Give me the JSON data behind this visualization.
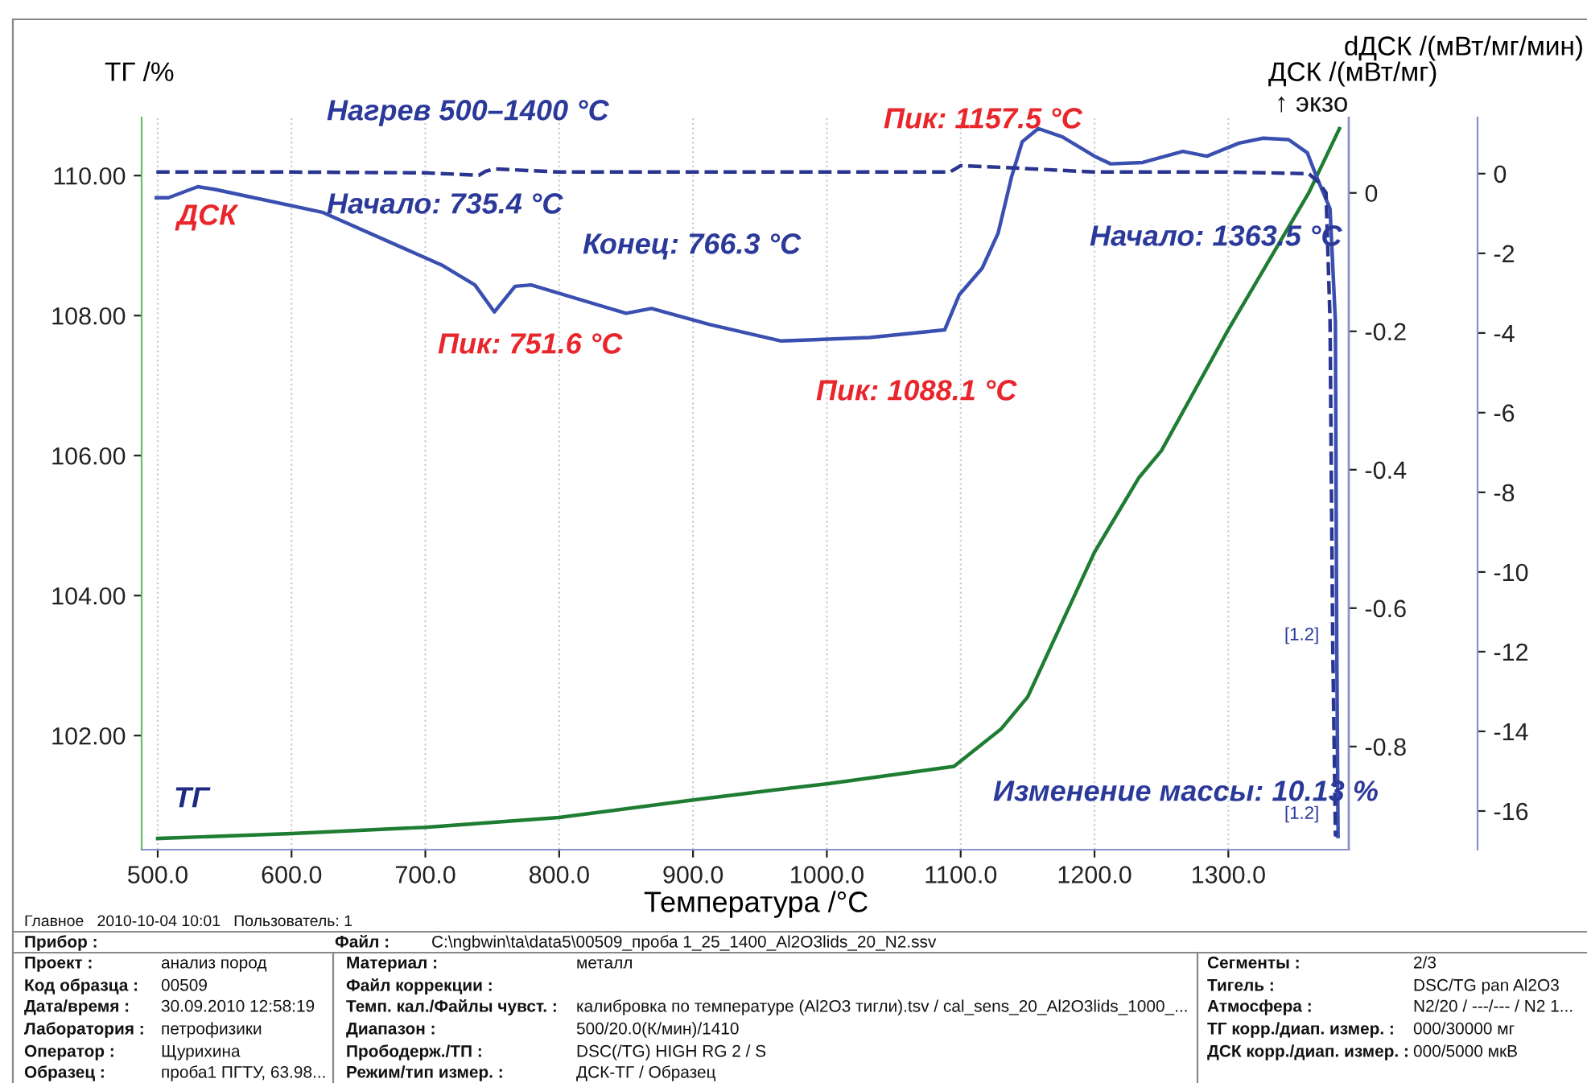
{
  "chart_data": {
    "type": "line",
    "xlabel": "Температура /°C",
    "ylabel": "ТГ /%",
    "y2label": "ДСК /(мВт/мг)",
    "y3label": "dДСК /(мВт/мг/мин)",
    "xlim": [
      488,
      1390
    ],
    "xticks": [
      {
        "value": 500,
        "label": "500.0"
      },
      {
        "value": 600,
        "label": "600.0"
      },
      {
        "value": 700,
        "label": "700.0"
      },
      {
        "value": 800,
        "label": "800.0"
      },
      {
        "value": 900,
        "label": "900.0"
      },
      {
        "value": 1000,
        "label": "1000.0"
      },
      {
        "value": 1100,
        "label": "1100.0"
      },
      {
        "value": 1200,
        "label": "1200.0"
      },
      {
        "value": 1300,
        "label": "1300.0"
      }
    ],
    "ylim": [
      100.37,
      110.83
    ],
    "yticks": [
      {
        "value": 102,
        "label": "102.00"
      },
      {
        "value": 104,
        "label": "104.00"
      },
      {
        "value": 106,
        "label": "106.00"
      },
      {
        "value": 108,
        "label": "108.00"
      },
      {
        "value": 110,
        "label": "110.00"
      }
    ],
    "y2lim": [
      -0.949,
      0.109
    ],
    "y2ticks": [
      -0.8,
      -0.6,
      -0.4,
      -0.2,
      0
    ],
    "y3lim": [
      -16.97,
      1.41
    ],
    "y3ticks": [
      -16,
      -14,
      -12,
      -10,
      -8,
      -6,
      -4,
      -2,
      0
    ],
    "grid": "x",
    "line_style": "solid",
    "series": [
      {
        "name": "ТГ",
        "axis": "y",
        "color": "#1e7d32",
        "x": [
          500,
          600,
          700,
          800,
          900,
          960,
          1000,
          1095,
          1130,
          1150,
          1200,
          1233,
          1250,
          1300,
          1360,
          1383
        ],
        "values": [
          100.53,
          100.6,
          100.69,
          100.83,
          101.08,
          101.22,
          101.31,
          101.56,
          102.09,
          102.55,
          104.62,
          105.68,
          106.07,
          107.8,
          109.75,
          110.67
        ]
      },
      {
        "name": "ДСК",
        "axis": "y2",
        "color": "#3a4fb0",
        "x": [
          499,
          508,
          530,
          543,
          623,
          713,
          737,
          751.6,
          767,
          779,
          850,
          869,
          912,
          966,
          1032,
          1088,
          1099,
          1116,
          1128,
          1138,
          1146,
          1158,
          1176,
          1200,
          1212,
          1236,
          1266,
          1284,
          1308,
          1326,
          1345,
          1359,
          1366,
          1376,
          1380,
          1381,
          1382
        ],
        "values": [
          -0.007,
          -0.007,
          0.009,
          0.005,
          -0.028,
          -0.105,
          -0.133,
          -0.172,
          -0.135,
          -0.133,
          -0.174,
          -0.167,
          -0.19,
          -0.214,
          -0.209,
          -0.198,
          -0.147,
          -0.109,
          -0.058,
          0.023,
          0.074,
          0.093,
          0.081,
          0.053,
          0.042,
          0.044,
          0.06,
          0.053,
          0.072,
          0.079,
          0.077,
          0.058,
          0.023,
          -0.023,
          -0.186,
          -0.65,
          -0.93
        ]
      },
      {
        "axis": "y3",
        "color": "#2a3590",
        "line_style": "dashed",
        "x": [
          499,
          600,
          700,
          740,
          745,
          752,
          800,
          900,
          1000,
          1092,
          1100,
          1130,
          1200,
          1300,
          1360,
          1367,
          1373,
          1376,
          1378,
          1380,
          1381
        ],
        "values": [
          0.04,
          0.04,
          0.02,
          -0.04,
          0.06,
          0.12,
          0.04,
          0.04,
          0.04,
          0.04,
          0.2,
          0.16,
          0.04,
          0.04,
          0.0,
          -0.2,
          -0.48,
          -3.7,
          -11.8,
          -16.6,
          -16.6
        ]
      }
    ],
    "annotations": [
      "Нагрев 500–1400 °C",
      "Начало: 735.4 °C",
      "Конец: 766.3 °C",
      "Пик: 751.6 °C",
      "Пик: 1088.1 °C",
      "Пик: 1157.5 °C",
      "Начало: 1363.5 °C",
      "Изменение массы: 10.13 %",
      "[1.2]",
      "[1.2]",
      "↑ экзо",
      "Главное   2010-10-04 10:01   Пользователь: 1",
      "Прибор :",
      "Файл :",
      "C:\\ngbwin\\ta\\data5\\00509_проба 1_25_1400_Al2O3lids_20_N2.ssv",
      "Проект :",
      "анализ пород",
      "Код образца :",
      "00509",
      "Дата/время :",
      "30.09.2010 12:58:19",
      "Лаборатория :",
      "петрофизики",
      "Оператор :",
      "Щурихина",
      "Образец :",
      "проба1 ПГТУ, 63.98...",
      "Материал :",
      "металл",
      "Файл коррекции :",
      "Темп. кал./Файлы чувст. :",
      "калибровка по температуре (Al2O3 тигли).tsv / cal_sens_20_Al2O3lids_1000_...",
      "Диапазон :",
      "500/20.0(К/мин)/1410",
      "Прободерж./ТП :",
      "DSC(/TG) HIGH RG 2 / S",
      "Режим/тип измер. :",
      "ДСК-ТГ / Образец",
      "Сегменты :",
      "2/3",
      "Тигель :",
      "DSC/TG pan Al2O3",
      "Атмосфера :",
      "N2/20 / ---/--- / N2 1...",
      "ТГ корр./диап. измер. :",
      "000/30000 мг",
      "ДСК корр./диап. измер. :",
      "000/5000 мкВ"
    ]
  }
}
